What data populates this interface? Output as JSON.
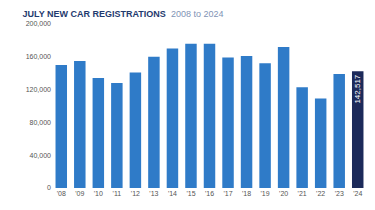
{
  "chart_data": {
    "type": "bar",
    "title": "JULY NEW CAR REGISTRATIONS",
    "subtitle": "2008 to 2024",
    "categories": [
      "'08",
      "'09",
      "'10",
      "'11",
      "'12",
      "'13",
      "'14",
      "'15",
      "'16",
      "'17",
      "'18",
      "'19",
      "'20",
      "'21",
      "'22",
      "'23",
      "'24"
    ],
    "values": [
      150000,
      155000,
      134000,
      128000,
      141000,
      160000,
      170000,
      176000,
      176000,
      159000,
      161000,
      152000,
      172000,
      123000,
      109000,
      139000,
      142517
    ],
    "value_labels": [
      null,
      null,
      null,
      null,
      null,
      null,
      null,
      null,
      null,
      null,
      null,
      null,
      null,
      null,
      null,
      null,
      "142,517"
    ],
    "data_labels": true,
    "colors": [
      "#2f7bc8",
      "#2f7bc8",
      "#2f7bc8",
      "#2f7bc8",
      "#2f7bc8",
      "#2f7bc8",
      "#2f7bc8",
      "#2f7bc8",
      "#2f7bc8",
      "#2f7bc8",
      "#2f7bc8",
      "#2f7bc8",
      "#2f7bc8",
      "#2f7bc8",
      "#2f7bc8",
      "#2f7bc8",
      "#1c2a5a"
    ],
    "ylim": [
      0,
      200000
    ],
    "yticks": [
      0,
      {
        "value": 40000,
        "label": "40,000"
      },
      {
        "value": 80000,
        "label": "80,000"
      },
      {
        "value": 120000,
        "label": "120,000"
      },
      {
        "value": 160000,
        "label": "160,000"
      },
      {
        "value": 200000,
        "label": "200,000"
      }
    ],
    "grid": false
  }
}
